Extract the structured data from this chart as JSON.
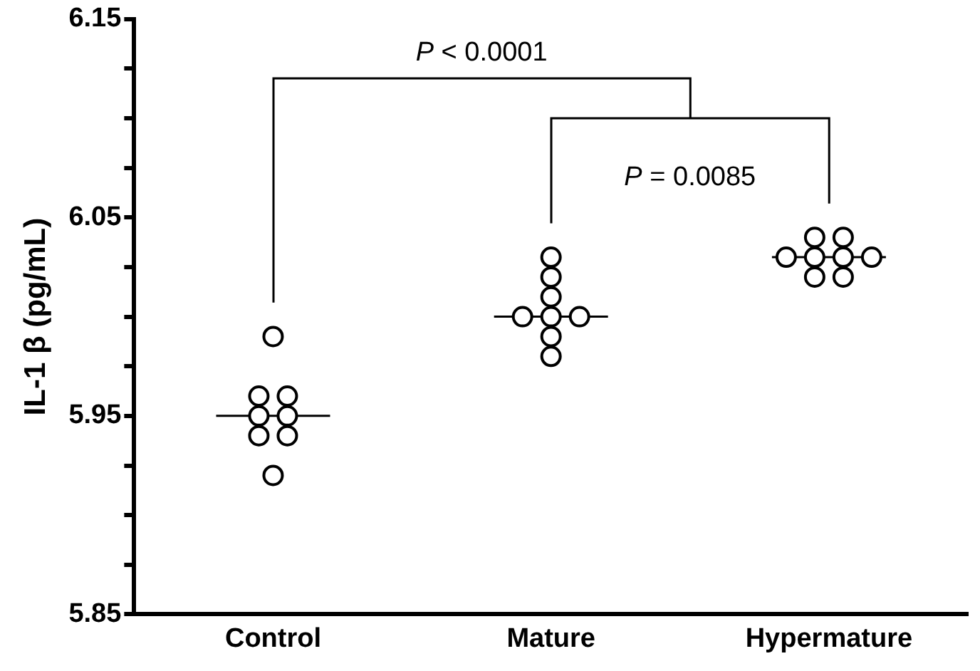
{
  "chart_data": {
    "type": "scatter",
    "ylabel": "IL-1 β (pg/mL)",
    "categories": [
      "Control",
      "Mature",
      "Hypermature"
    ],
    "series": [
      {
        "marker": "circle",
        "color": "#000000",
        "x": [
          "Control",
          "Control",
          "Control",
          "Control",
          "Control",
          "Control",
          "Control",
          "Control"
        ],
        "values": [
          5.99,
          5.96,
          5.96,
          5.95,
          5.95,
          5.94,
          5.94,
          5.92
        ]
      },
      {
        "marker": "circle",
        "color": "#000000",
        "x": [
          "Mature",
          "Mature",
          "Mature",
          "Mature",
          "Mature",
          "Mature",
          "Mature",
          "Mature"
        ],
        "values": [
          6.03,
          6.02,
          6.01,
          6.0,
          6.0,
          6.0,
          5.99,
          5.98
        ]
      },
      {
        "marker": "circle",
        "color": "#000000",
        "x": [
          "Hypermature",
          "Hypermature",
          "Hypermature",
          "Hypermature",
          "Hypermature",
          "Hypermature",
          "Hypermature",
          "Hypermature"
        ],
        "values": [
          6.04,
          6.04,
          6.03,
          6.03,
          6.03,
          6.03,
          6.02,
          6.02
        ]
      },
      {
        "type": "box",
        "color": "#000000",
        "boxes": [
          {
            "low": 5.95,
            "q1": 5.95,
            "median": 5.95,
            "q3": 5.95,
            "high": 5.95
          },
          {
            "low": 6.0,
            "q1": 6.0,
            "median": 6.0,
            "q3": 6.0,
            "high": 6.0
          },
          {
            "low": 6.03,
            "q1": 6.03,
            "median": 6.03,
            "q3": 6.03,
            "high": 6.03
          }
        ]
      }
    ],
    "ylim": [
      5.85,
      6.15
    ],
    "yticks": [
      5.85,
      {
        "value": 5.875,
        "label": null
      },
      {
        "value": 5.9,
        "label": null
      },
      {
        "value": 5.925,
        "label": null
      },
      5.95,
      {
        "value": 5.975,
        "label": null
      },
      {
        "value": 6.0,
        "label": null
      },
      {
        "value": 6.025,
        "label": null
      },
      6.05,
      {
        "value": 6.075,
        "label": null
      },
      {
        "value": 6.1,
        "label": null
      },
      {
        "value": 6.125,
        "label": null
      },
      6.15
    ],
    "annotations": [
      "P < 0.0001",
      "P = 0.0085"
    ],
    "grid": false,
    "legend": false
  }
}
